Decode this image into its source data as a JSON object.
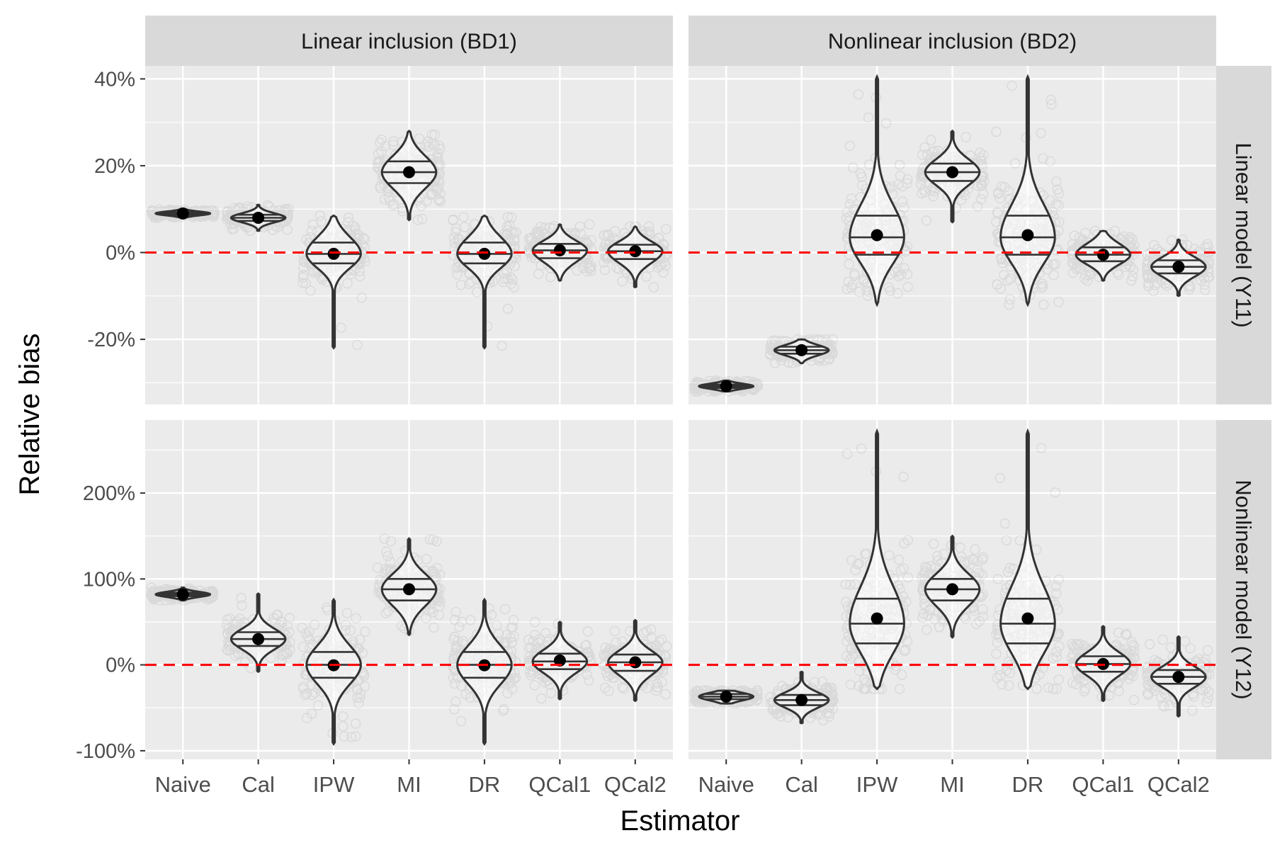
{
  "chart_data": {
    "type": "violin",
    "xlabel": "Estimator",
    "ylabel": "Relative bias",
    "categories": [
      "Naive",
      "Cal",
      "IPW",
      "MI",
      "DR",
      "QCal1",
      "QCal2"
    ],
    "col_facets": [
      "Linear inclusion (BD1)",
      "Nonlinear inclusion (BD2)"
    ],
    "row_facets": [
      {
        "label": "Linear model (Y11)",
        "ylim": [
          -35,
          43
        ],
        "ticks": [
          -20,
          0,
          20,
          40
        ],
        "tick_labels": [
          "-20%",
          "0%",
          "20%",
          "40%"
        ]
      },
      {
        "label": "Nonlinear model (Y12)",
        "ylim": [
          -110,
          285
        ],
        "ticks": [
          -100,
          0,
          100,
          200
        ],
        "tick_labels": [
          "-100%",
          "0%",
          "100%",
          "200%"
        ]
      }
    ],
    "reference_line": {
      "y": 0,
      "color": "#ff0000",
      "style": "dashed"
    },
    "panels": [
      {
        "row": 0,
        "col": 0,
        "estimators": [
          {
            "name": "Naive",
            "mean": 9.0,
            "q25": 8.7,
            "q50": 9.0,
            "q75": 9.3,
            "min": 8.0,
            "max": 10.0
          },
          {
            "name": "Cal",
            "mean": 8.0,
            "q25": 7.3,
            "q50": 8.0,
            "q75": 8.7,
            "min": 5.0,
            "max": 11.0
          },
          {
            "name": "IPW",
            "mean": -0.3,
            "q25": -2.5,
            "q50": -0.3,
            "q75": 2.3,
            "min": -22.0,
            "max": 8.5
          },
          {
            "name": "MI",
            "mean": 18.5,
            "q25": 16.0,
            "q50": 18.5,
            "q75": 21.0,
            "min": 7.5,
            "max": 28.0
          },
          {
            "name": "DR",
            "mean": -0.3,
            "q25": -2.5,
            "q50": -0.3,
            "q75": 2.3,
            "min": -22.0,
            "max": 8.5
          },
          {
            "name": "QCal1",
            "mean": 0.5,
            "q25": -1.3,
            "q50": 0.5,
            "q75": 2.0,
            "min": -6.5,
            "max": 6.5
          },
          {
            "name": "QCal2",
            "mean": 0.3,
            "q25": -1.5,
            "q50": 0.3,
            "q75": 1.8,
            "min": -8.0,
            "max": 6.0
          }
        ]
      },
      {
        "row": 0,
        "col": 1,
        "estimators": [
          {
            "name": "Naive",
            "mean": -30.8,
            "q25": -31.2,
            "q50": -30.8,
            "q75": -30.4,
            "min": -32.0,
            "max": -29.5
          },
          {
            "name": "Cal",
            "mean": -22.5,
            "q25": -23.3,
            "q50": -22.5,
            "q75": -21.7,
            "min": -25.5,
            "max": -20.0
          },
          {
            "name": "IPW",
            "mean": 4.0,
            "q25": -0.5,
            "q50": 3.5,
            "q75": 8.5,
            "min": -12.0,
            "max": 40.5
          },
          {
            "name": "MI",
            "mean": 18.5,
            "q25": 16.5,
            "q50": 18.5,
            "q75": 20.5,
            "min": 7.0,
            "max": 28.0
          },
          {
            "name": "DR",
            "mean": 4.0,
            "q25": -0.5,
            "q50": 3.5,
            "q75": 8.5,
            "min": -12.0,
            "max": 40.5
          },
          {
            "name": "QCal1",
            "mean": -0.5,
            "q25": -2.0,
            "q50": -0.5,
            "q75": 1.2,
            "min": -6.5,
            "max": 5.0
          },
          {
            "name": "QCal2",
            "mean": -3.3,
            "q25": -4.8,
            "q50": -3.3,
            "q75": -1.8,
            "min": -10.0,
            "max": 3.0
          }
        ]
      },
      {
        "row": 1,
        "col": 0,
        "estimators": [
          {
            "name": "Naive",
            "mean": 82.0,
            "q25": 80.0,
            "q50": 82.0,
            "q75": 84.0,
            "min": 75.0,
            "max": 90.0
          },
          {
            "name": "Cal",
            "mean": 30.0,
            "q25": 22.0,
            "q50": 30.0,
            "q75": 38.0,
            "min": -8.0,
            "max": 83.0
          },
          {
            "name": "IPW",
            "mean": -0.5,
            "q25": -15.0,
            "q50": 0.0,
            "q75": 15.0,
            "min": -92.0,
            "max": 76.0
          },
          {
            "name": "MI",
            "mean": 88.0,
            "q25": 75.0,
            "q50": 88.0,
            "q75": 100.0,
            "min": 35.0,
            "max": 147.0
          },
          {
            "name": "DR",
            "mean": -0.5,
            "q25": -15.0,
            "q50": 0.0,
            "q75": 15.0,
            "min": -92.0,
            "max": 76.0
          },
          {
            "name": "QCal1",
            "mean": 5.0,
            "q25": -5.0,
            "q50": 4.0,
            "q75": 13.0,
            "min": -40.0,
            "max": 50.0
          },
          {
            "name": "QCal2",
            "mean": 3.0,
            "q25": -7.0,
            "q50": 3.0,
            "q75": 12.0,
            "min": -42.0,
            "max": 52.0
          }
        ]
      },
      {
        "row": 1,
        "col": 1,
        "estimators": [
          {
            "name": "Naive",
            "mean": -37.0,
            "q25": -40.0,
            "q50": -37.0,
            "q75": -34.0,
            "min": -45.0,
            "max": -30.0
          },
          {
            "name": "Cal",
            "mean": -41.0,
            "q25": -47.0,
            "q50": -41.0,
            "q75": -35.0,
            "min": -68.0,
            "max": -8.0
          },
          {
            "name": "IPW",
            "mean": 54.0,
            "q25": 25.0,
            "q50": 48.0,
            "q75": 77.0,
            "min": -28.0,
            "max": 272.0
          },
          {
            "name": "MI",
            "mean": 88.0,
            "q25": 75.0,
            "q50": 88.0,
            "q75": 100.0,
            "min": 32.0,
            "max": 150.0
          },
          {
            "name": "DR",
            "mean": 54.0,
            "q25": 25.0,
            "q50": 48.0,
            "q75": 77.0,
            "min": -28.0,
            "max": 272.0
          },
          {
            "name": "QCal1",
            "mean": 1.0,
            "q25": -8.0,
            "q50": 1.0,
            "q75": 10.0,
            "min": -42.0,
            "max": 45.0
          },
          {
            "name": "QCal2",
            "mean": -14.0,
            "q25": -22.0,
            "q50": -14.0,
            "q75": -6.0,
            "min": -60.0,
            "max": 33.0
          }
        ]
      }
    ],
    "grid": true,
    "colors": {
      "panel_bg": "#ebebeb",
      "strip_bg": "#d9d9d9",
      "grid": "#ffffff",
      "violin_fill": "#ffffff",
      "violin_line": "#333333",
      "mean_point": "#000000",
      "jitter": "#000000",
      "reference_line": "#ff0000",
      "text": "#4d4d4d",
      "title_text": "#000000"
    }
  }
}
